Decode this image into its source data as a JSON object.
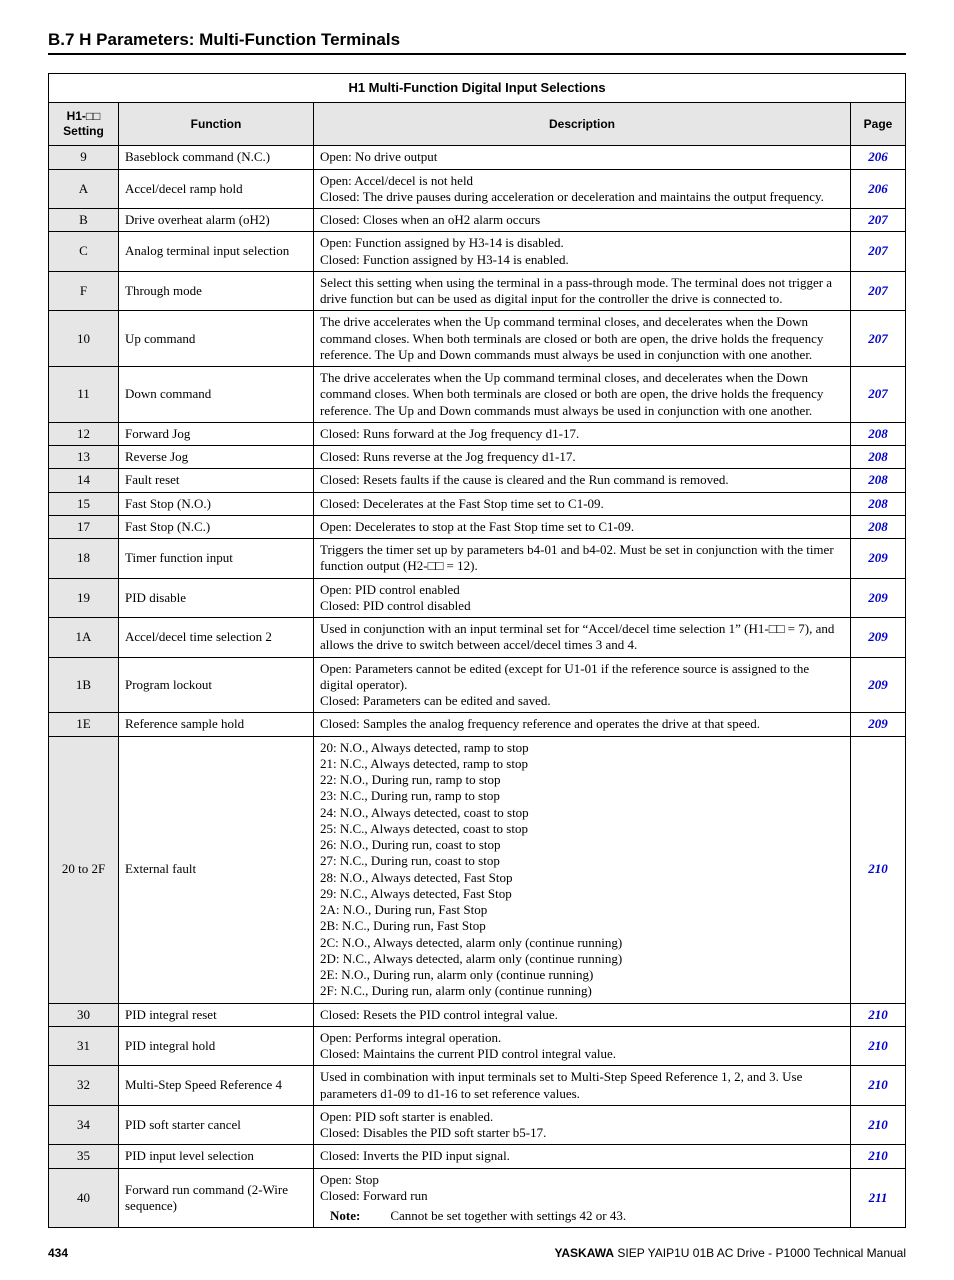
{
  "section_title": "B.7  H Parameters: Multi-Function Terminals",
  "table_caption": "H1 Multi-Function Digital Input Selections",
  "headers": {
    "setting": "H1-□□ Setting",
    "function": "Function",
    "description": "Description",
    "page": "Page"
  },
  "rows": [
    {
      "setting": "9",
      "func": "Baseblock command (N.C.)",
      "desc": [
        "Open: No drive output"
      ],
      "page": "206"
    },
    {
      "setting": "A",
      "func": "Accel/decel ramp hold",
      "desc": [
        "Open: Accel/decel is not held",
        "Closed: The drive pauses during acceleration or deceleration and maintains the output frequency."
      ],
      "page": "206"
    },
    {
      "setting": "B",
      "func": "Drive overheat alarm (oH2)",
      "desc": [
        "Closed: Closes when an oH2 alarm occurs"
      ],
      "page": "207"
    },
    {
      "setting": "C",
      "func": "Analog terminal input selection",
      "desc": [
        "Open: Function assigned by H3-14 is disabled.",
        "Closed: Function assigned by H3-14 is enabled."
      ],
      "page": "207"
    },
    {
      "setting": "F",
      "func": "Through mode",
      "desc": [
        "Select this setting when using the terminal in a pass-through mode. The terminal does not trigger a drive function but can be used as digital input for the controller the drive is connected to."
      ],
      "page": "207"
    },
    {
      "setting": "10",
      "func": "Up command",
      "desc": [
        "The drive accelerates when the Up command terminal closes, and decelerates when the Down command closes. When both terminals are closed or both are open, the drive holds the frequency reference. The Up and Down commands must always be used in conjunction with one another."
      ],
      "page": "207"
    },
    {
      "setting": "11",
      "func": "Down command",
      "desc": [
        "The drive accelerates when the Up command terminal closes, and decelerates when the Down command closes. When both terminals are closed or both are open, the drive holds the frequency reference. The Up and Down commands must always be used in conjunction with one another."
      ],
      "page": "207"
    },
    {
      "setting": "12",
      "func": "Forward Jog",
      "desc": [
        "Closed: Runs forward at the Jog frequency d1-17."
      ],
      "page": "208"
    },
    {
      "setting": "13",
      "func": "Reverse Jog",
      "desc": [
        "Closed: Runs reverse at the Jog frequency d1-17."
      ],
      "page": "208"
    },
    {
      "setting": "14",
      "func": "Fault reset",
      "desc": [
        "Closed: Resets faults if the cause is cleared and the Run command is removed."
      ],
      "page": "208"
    },
    {
      "setting": "15",
      "func": "Fast Stop (N.O.)",
      "desc": [
        "Closed: Decelerates at the Fast Stop time set to C1-09."
      ],
      "page": "208"
    },
    {
      "setting": "17",
      "func": "Fast Stop (N.C.)",
      "desc": [
        "Open: Decelerates to stop at the Fast Stop time set to C1-09."
      ],
      "page": "208"
    },
    {
      "setting": "18",
      "func": "Timer function input",
      "desc": [
        "Triggers the timer set up by parameters b4-01 and b4-02. Must be set in conjunction with the timer function output (H2-□□ = 12)."
      ],
      "page": "209"
    },
    {
      "setting": "19",
      "func": "PID disable",
      "desc": [
        "Open: PID control enabled",
        "Closed: PID control disabled"
      ],
      "page": "209"
    },
    {
      "setting": "1A",
      "func": "Accel/decel time selection 2",
      "desc": [
        "Used in conjunction with an input terminal set for “Accel/decel time selection 1” (H1-□□ = 7), and allows the drive to switch between accel/decel times 3 and 4."
      ],
      "page": "209"
    },
    {
      "setting": "1B",
      "func": "Program lockout",
      "desc": [
        "Open: Parameters cannot be edited (except for U1-01 if the reference source is assigned to the digital operator).",
        "Closed: Parameters can be edited and saved."
      ],
      "page": "209"
    },
    {
      "setting": "1E",
      "func": "Reference sample hold",
      "desc": [
        "Closed: Samples the analog frequency reference and operates the drive at that speed."
      ],
      "page": "209"
    },
    {
      "setting": "20 to 2F",
      "func": "External fault",
      "desc": [
        "20: N.O., Always detected, ramp to stop",
        "21: N.C., Always detected, ramp to stop",
        "22: N.O., During run, ramp to stop",
        "23: N.C., During run, ramp to stop",
        "24: N.O., Always detected, coast to stop",
        "25: N.C., Always detected, coast to stop",
        "26: N.O., During run, coast to stop",
        "27: N.C., During run, coast to stop",
        "28: N.O., Always detected, Fast Stop",
        "29: N.C., Always detected, Fast Stop",
        "2A: N.O., During run, Fast Stop",
        "2B: N.C., During run, Fast Stop",
        "2C: N.O., Always detected, alarm only (continue running)",
        "2D: N.C., Always detected, alarm only (continue running)",
        "2E: N.O., During run, alarm only (continue running)",
        "2F: N.C., During run, alarm only (continue running)"
      ],
      "page": "210"
    },
    {
      "setting": "30",
      "func": "PID integral reset",
      "desc": [
        "Closed: Resets the PID control integral value."
      ],
      "page": "210"
    },
    {
      "setting": "31",
      "func": "PID integral hold",
      "desc": [
        "Open: Performs integral operation.",
        "Closed: Maintains the current PID control integral value."
      ],
      "page": "210"
    },
    {
      "setting": "32",
      "func": "Multi-Step Speed Reference 4",
      "desc": [
        "Used in combination with input terminals set to Multi-Step Speed Reference 1, 2, and 3. Use parameters d1-09 to d1-16 to set reference values."
      ],
      "page": "210"
    },
    {
      "setting": "34",
      "func": "PID soft starter cancel",
      "desc": [
        "Open: PID soft starter is enabled.",
        "Closed: Disables the PID soft starter b5-17."
      ],
      "page": "210"
    },
    {
      "setting": "35",
      "func": "PID input level selection",
      "desc": [
        "Closed: Inverts the PID input signal."
      ],
      "page": "210"
    },
    {
      "setting": "40",
      "func": "Forward run command (2-Wire sequence)",
      "desc": [
        "Open: Stop",
        "Closed: Forward run"
      ],
      "note": {
        "label": "Note:",
        "text": "Cannot be set together with settings 42 or 43."
      },
      "page": "211"
    }
  ],
  "footer": {
    "page_number": "434",
    "brand": "YASKAWA",
    "doc": " SIEP YAIP1U 01B AC Drive - P1000 Technical Manual"
  }
}
